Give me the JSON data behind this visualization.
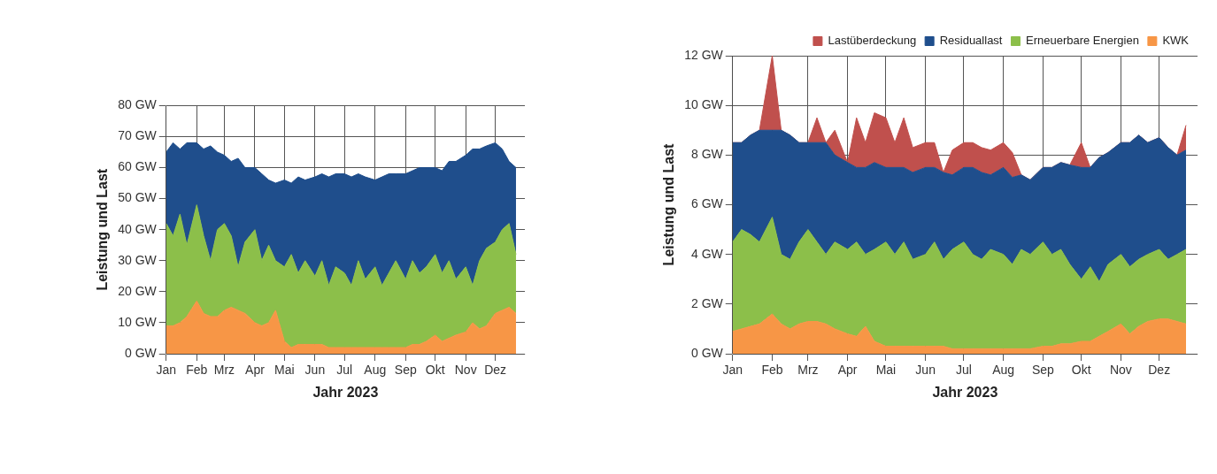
{
  "chart_data": [
    {
      "type": "area",
      "stacked": true,
      "grid": true,
      "legend": false,
      "xlabel": "Jahr 2023",
      "ylabel": "Leistung und Last",
      "x": [
        "2023-01-01",
        "2023-01-08",
        "2023-01-15",
        "2023-01-22",
        "2023-02-01",
        "2023-02-08",
        "2023-02-15",
        "2023-02-22",
        "2023-03-01",
        "2023-03-08",
        "2023-03-15",
        "2023-03-22",
        "2023-04-01",
        "2023-04-08",
        "2023-04-15",
        "2023-04-22",
        "2023-05-01",
        "2023-05-08",
        "2023-05-15",
        "2023-05-22",
        "2023-06-01",
        "2023-06-08",
        "2023-06-15",
        "2023-06-22",
        "2023-07-01",
        "2023-07-08",
        "2023-07-15",
        "2023-07-22",
        "2023-08-01",
        "2023-08-08",
        "2023-08-15",
        "2023-08-22",
        "2023-09-01",
        "2023-09-08",
        "2023-09-15",
        "2023-09-22",
        "2023-10-01",
        "2023-10-08",
        "2023-10-15",
        "2023-10-22",
        "2023-11-01",
        "2023-11-08",
        "2023-11-15",
        "2023-11-22",
        "2023-12-01",
        "2023-12-08",
        "2023-12-15",
        "2023-12-22"
      ],
      "xlim": [
        "2023-01-01",
        "2023-12-31"
      ],
      "xticks": [
        {
          "value": "2023-01-01",
          "label": "Jan"
        },
        {
          "value": "2023-02-01",
          "label": "Feb"
        },
        {
          "value": "2023-03-01",
          "label": "Mrz"
        },
        {
          "value": "2023-04-01",
          "label": "Apr"
        },
        {
          "value": "2023-05-01",
          "label": "Mai"
        },
        {
          "value": "2023-06-01",
          "label": "Jun"
        },
        {
          "value": "2023-07-01",
          "label": "Jul"
        },
        {
          "value": "2023-08-01",
          "label": "Aug"
        },
        {
          "value": "2023-09-01",
          "label": "Sep"
        },
        {
          "value": "2023-10-01",
          "label": "Okt"
        },
        {
          "value": "2023-11-01",
          "label": "Nov"
        },
        {
          "value": "2023-12-01",
          "label": "Dez"
        }
      ],
      "ylim": [
        0,
        80
      ],
      "yticks": [
        {
          "value": 0,
          "label": "0 GW"
        },
        {
          "value": 10,
          "label": "10 GW"
        },
        {
          "value": 20,
          "label": "20 GW"
        },
        {
          "value": 30,
          "label": "30 GW"
        },
        {
          "value": 40,
          "label": "40 GW"
        },
        {
          "value": 50,
          "label": "50 GW"
        },
        {
          "value": 60,
          "label": "60 GW"
        },
        {
          "value": 70,
          "label": "70 GW"
        },
        {
          "value": 80,
          "label": "80 GW"
        }
      ],
      "series": [
        {
          "color": "#f79646",
          "values": [
            9,
            9,
            10,
            12,
            17,
            13,
            12,
            12,
            14,
            15,
            14,
            13,
            10,
            9,
            10,
            14,
            4,
            2,
            3,
            3,
            3,
            3,
            2,
            2,
            2,
            2,
            2,
            2,
            2,
            2,
            2,
            2,
            2,
            3,
            3,
            4,
            6,
            4,
            5,
            6,
            7,
            10,
            8,
            9,
            13,
            14,
            15,
            13
          ]
        },
        {
          "color": "#8cbf4a",
          "values": [
            33,
            29,
            35,
            23,
            31,
            25,
            18,
            28,
            28,
            23,
            14,
            23,
            30,
            21,
            25,
            16,
            24,
            30,
            23,
            27,
            22,
            27,
            20,
            26,
            24,
            20,
            28,
            22,
            26,
            20,
            24,
            28,
            22,
            27,
            23,
            24,
            26,
            22,
            25,
            18,
            21,
            12,
            22,
            25,
            23,
            26,
            27,
            19
          ]
        },
        {
          "color": "#1f4e8c",
          "values": [
            23,
            30,
            21,
            33,
            20,
            28,
            37,
            25,
            22,
            24,
            35,
            24,
            20,
            28,
            21,
            25,
            28,
            23,
            31,
            26,
            32,
            28,
            35,
            30,
            32,
            35,
            28,
            33,
            28,
            35,
            32,
            28,
            34,
            29,
            34,
            32,
            28,
            33,
            32,
            38,
            36,
            44,
            36,
            33,
            32,
            26,
            20,
            28
          ]
        }
      ]
    },
    {
      "type": "area",
      "stacked": true,
      "grid": true,
      "legend": "top right",
      "xlabel": "Jahr 2023",
      "ylabel": "Leistung und Last",
      "x": [
        "2023-01-01",
        "2023-01-08",
        "2023-01-15",
        "2023-01-22",
        "2023-02-01",
        "2023-02-08",
        "2023-02-15",
        "2023-02-22",
        "2023-03-01",
        "2023-03-08",
        "2023-03-15",
        "2023-03-22",
        "2023-04-01",
        "2023-04-08",
        "2023-04-15",
        "2023-04-22",
        "2023-05-01",
        "2023-05-08",
        "2023-05-15",
        "2023-05-22",
        "2023-06-01",
        "2023-06-08",
        "2023-06-15",
        "2023-06-22",
        "2023-07-01",
        "2023-07-08",
        "2023-07-15",
        "2023-07-22",
        "2023-08-01",
        "2023-08-08",
        "2023-08-15",
        "2023-08-22",
        "2023-09-01",
        "2023-09-08",
        "2023-09-15",
        "2023-09-22",
        "2023-10-01",
        "2023-10-08",
        "2023-10-15",
        "2023-10-22",
        "2023-11-01",
        "2023-11-08",
        "2023-11-15",
        "2023-11-22",
        "2023-12-01",
        "2023-12-08",
        "2023-12-15",
        "2023-12-22"
      ],
      "xlim": [
        "2023-01-01",
        "2023-12-31"
      ],
      "xticks": [
        {
          "value": "2023-01-01",
          "label": "Jan"
        },
        {
          "value": "2023-02-01",
          "label": "Feb"
        },
        {
          "value": "2023-03-01",
          "label": "Mrz"
        },
        {
          "value": "2023-04-01",
          "label": "Apr"
        },
        {
          "value": "2023-05-01",
          "label": "Mai"
        },
        {
          "value": "2023-06-01",
          "label": "Jun"
        },
        {
          "value": "2023-07-01",
          "label": "Jul"
        },
        {
          "value": "2023-08-01",
          "label": "Aug"
        },
        {
          "value": "2023-09-01",
          "label": "Sep"
        },
        {
          "value": "2023-10-01",
          "label": "Okt"
        },
        {
          "value": "2023-11-01",
          "label": "Nov"
        },
        {
          "value": "2023-12-01",
          "label": "Dez"
        }
      ],
      "ylim": [
        0,
        12
      ],
      "yticks": [
        {
          "value": 0,
          "label": "0 GW"
        },
        {
          "value": 2,
          "label": "2 GW"
        },
        {
          "value": 4,
          "label": "4 GW"
        },
        {
          "value": 6,
          "label": "6 GW"
        },
        {
          "value": 8,
          "label": "8 GW"
        },
        {
          "value": 10,
          "label": "10 GW"
        },
        {
          "value": 12,
          "label": "12 GW"
        }
      ],
      "series": [
        {
          "name": "KWK",
          "color": "#f79646",
          "values": [
            0.9,
            1.0,
            1.1,
            1.2,
            1.6,
            1.2,
            1.0,
            1.2,
            1.3,
            1.3,
            1.2,
            1.0,
            0.8,
            0.7,
            1.1,
            0.5,
            0.3,
            0.3,
            0.3,
            0.3,
            0.3,
            0.3,
            0.3,
            0.2,
            0.2,
            0.2,
            0.2,
            0.2,
            0.2,
            0.2,
            0.2,
            0.2,
            0.3,
            0.3,
            0.4,
            0.4,
            0.5,
            0.5,
            0.7,
            0.9,
            1.2,
            0.8,
            1.1,
            1.3,
            1.4,
            1.4,
            1.3,
            1.2
          ]
        },
        {
          "name": "Erneuerbare Energien",
          "color": "#8cbf4a",
          "values": [
            3.6,
            4.0,
            3.7,
            3.3,
            3.9,
            2.8,
            2.8,
            3.3,
            3.7,
            3.2,
            2.8,
            3.5,
            3.4,
            3.8,
            2.9,
            3.7,
            4.2,
            3.7,
            4.2,
            3.5,
            3.7,
            4.2,
            3.5,
            4.0,
            4.3,
            3.8,
            3.6,
            4.0,
            3.8,
            3.4,
            4.0,
            3.8,
            4.2,
            3.7,
            3.8,
            3.2,
            2.5,
            3.0,
            2.2,
            2.7,
            2.8,
            2.7,
            2.7,
            2.7,
            2.8,
            2.4,
            2.7,
            3.0
          ]
        },
        {
          "name": "Residuallast",
          "color": "#1f4e8c",
          "values": [
            4,
            3.5,
            4,
            4.5,
            3.5,
            5,
            5,
            4,
            3.5,
            4,
            4.5,
            3.5,
            3.5,
            3,
            3.5,
            3.5,
            3,
            3.5,
            3,
            3.5,
            3.5,
            3,
            3.5,
            3,
            3,
            3.5,
            3.5,
            3,
            3.5,
            3.5,
            3,
            3,
            3,
            3.5,
            3.5,
            4,
            4.5,
            4,
            5,
            4.5,
            4.5,
            5,
            5,
            4.5,
            4.5,
            4.5,
            4,
            4
          ]
        },
        {
          "name": "Lastüberdeckung",
          "color": "#c0504d",
          "values": [
            0,
            0,
            0,
            0,
            3,
            0,
            0,
            0,
            0,
            1,
            0,
            1,
            0,
            2,
            1,
            2,
            2,
            1,
            2,
            1,
            1,
            1,
            0,
            1,
            1,
            1,
            1,
            1,
            1,
            1,
            0,
            0,
            0,
            0,
            0,
            0,
            1,
            0,
            0,
            0,
            0,
            0,
            0,
            0,
            0,
            0,
            0,
            1
          ]
        }
      ]
    }
  ]
}
